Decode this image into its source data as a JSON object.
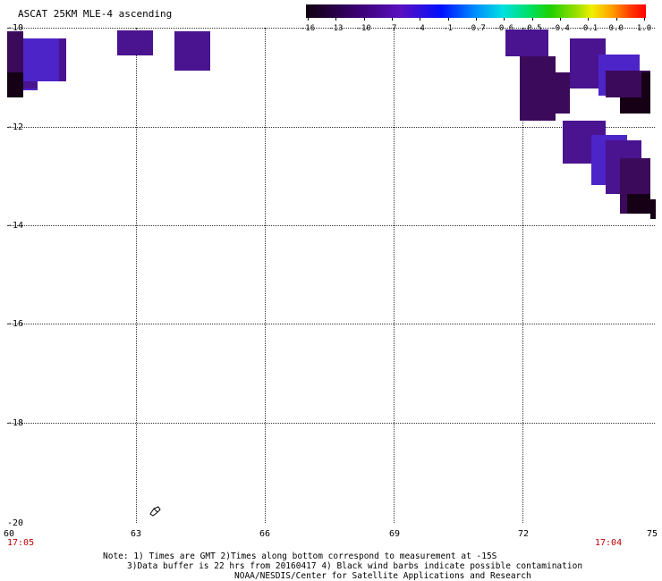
{
  "title": "ASCAT 25KM MLE-4 ascending",
  "colorbar": {
    "labels": [
      "-16",
      "-13",
      "-10",
      "-7",
      "-4",
      "-1",
      "-0.7",
      "-0.6",
      "-0.5",
      "-0.4",
      "-0.1",
      "0.0",
      "1.0"
    ],
    "colors": [
      "#100010",
      "#3a0070",
      "#5a10c0",
      "#0010ff",
      "#0090ff",
      "#00e0e0",
      "#00e060",
      "#20d000",
      "#a0e000",
      "#f0f000",
      "#ffa000",
      "#ff4000",
      "#ff0000"
    ]
  },
  "axes": {
    "lat_labels": [
      "-10",
      "-12",
      "-14",
      "-16",
      "-18",
      "-20"
    ],
    "lon_labels": [
      "60",
      "63",
      "66",
      "69",
      "72",
      "75"
    ],
    "time_left": "17:05",
    "time_right": "17:04"
  },
  "notes": {
    "line1": "Note: 1) Times are GMT 2)Times along bottom correspond to measurement at -15S",
    "line2": "3)Data buffer is 22 hrs from 20160417 4) Black wind barbs indicate possible contamination",
    "line3": "NOAA/NESDIS/Center for Satellite Applications and Research"
  },
  "colors": {
    "dark_purple": "#3c0a5a",
    "purple": "#4a1390",
    "violet_blue": "#4c24c8",
    "near_black": "#150015",
    "time_red": "#c00000"
  }
}
